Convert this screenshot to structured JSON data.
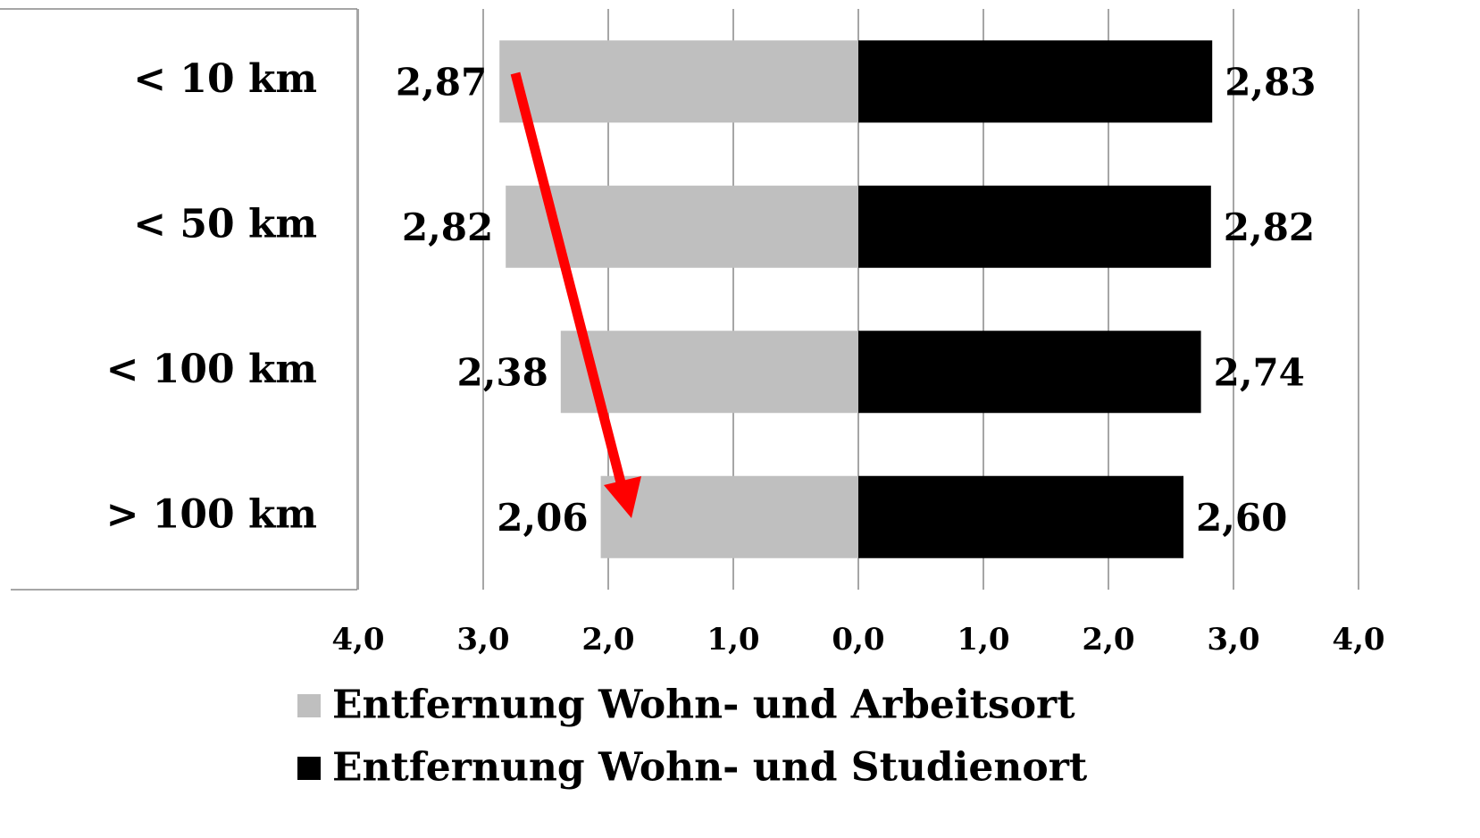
{
  "chart_data": {
    "type": "butterfly",
    "categories": [
      "< 10 km",
      "< 50 km",
      "< 100 km",
      "> 100 km"
    ],
    "series": [
      {
        "name": "Entfernung Wohn- und Arbeitsort",
        "color": "#bfbfbf",
        "side": "left",
        "values": [
          2.87,
          2.82,
          2.38,
          2.06
        ],
        "value_labels": [
          "2,87",
          "2,82",
          "2,38",
          "2,06"
        ]
      },
      {
        "name": "Entfernung Wohn- und Studienort",
        "color": "#000000",
        "side": "right",
        "values": [
          2.83,
          2.82,
          2.74,
          2.6
        ],
        "value_labels": [
          "2,83",
          "2,82",
          "2,74",
          "2,60"
        ]
      }
    ],
    "xlim": [
      0,
      4
    ],
    "xticks": [
      {
        "value": 0,
        "label": "0,0"
      },
      {
        "value": 1,
        "label": "1,0"
      },
      {
        "value": 2,
        "label": "2,0"
      },
      {
        "value": 3,
        "label": "3,0"
      },
      {
        "value": 4,
        "label": "4,0"
      }
    ],
    "grid": true
  }
}
